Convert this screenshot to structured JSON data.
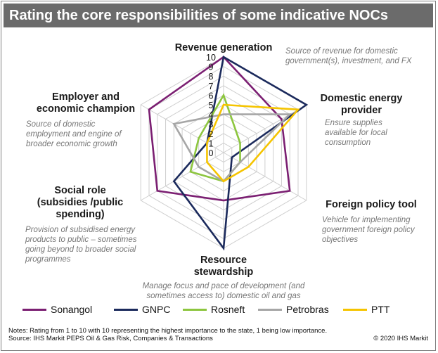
{
  "title": "Rating the core responsibilities of some indicative NOCs",
  "chart_data": {
    "type": "radar",
    "title": "Rating the core responsibilities of some indicative NOCs",
    "axes": [
      {
        "label": [
          "Revenue generation"
        ],
        "description": [
          "Source of revenue for domestic",
          "government(s), investment, and FX"
        ]
      },
      {
        "label": [
          "Domestic energy",
          "provider"
        ],
        "description": [
          "Ensure supplies",
          "available for local",
          "consumption"
        ]
      },
      {
        "label": [
          "Foreign policy tool"
        ],
        "description": [
          "Vehicle for implementing",
          "government foreign policy",
          "objectives"
        ]
      },
      {
        "label": [
          "Resource",
          "stewardship"
        ],
        "description": [
          "Manage focus and pace of development (and",
          "sometimes access to) domestic oil and gas"
        ]
      },
      {
        "label": [
          "Social role",
          "(subsidies /public",
          "spending)"
        ],
        "description": [
          "Provision of subsidised energy",
          "products to public – sometimes",
          "going beyond to broader social",
          "programmes"
        ]
      },
      {
        "label": [
          "Employer and",
          "economic champion"
        ],
        "description": [
          "Source of domestic",
          "employment and engine of",
          "broader economic growth"
        ]
      }
    ],
    "rlim": [
      0,
      10
    ],
    "ticks": [
      "0",
      "1",
      "2",
      "3",
      "4",
      "5",
      "6",
      "7",
      "8",
      "9",
      "10"
    ],
    "series": [
      {
        "name": "Sonangol",
        "color": "#7b1f72",
        "values": [
          10,
          7,
          8,
          5,
          8,
          9
        ]
      },
      {
        "name": "GNPC",
        "color": "#1b2a5c",
        "values": [
          10,
          10,
          1,
          10,
          6,
          2
        ]
      },
      {
        "name": "Rosneft",
        "color": "#8dc63f",
        "values": [
          6,
          2,
          2,
          3,
          4,
          3
        ]
      },
      {
        "name": "Petrobras",
        "color": "#a6a6a6",
        "values": [
          4,
          8,
          2,
          3,
          3,
          6
        ]
      },
      {
        "name": "PTT",
        "color": "#f5c400",
        "values": [
          5,
          9,
          3,
          3,
          2,
          2
        ]
      }
    ],
    "legend_position": "bottom"
  },
  "notes": [
    "Notes: Rating from 1 to 10 with 10 representing the highest importance to the state, 1 being low importance.",
    "Source: IHS Markit PEPS Oil & Gas Risk, Companies & Transactions"
  ],
  "copyright": "© 2020 IHS Markit"
}
